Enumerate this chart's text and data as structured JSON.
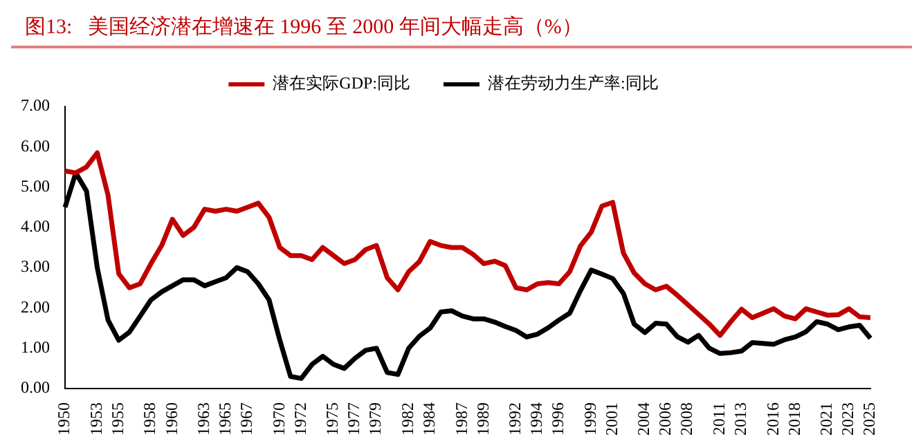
{
  "chart_data": {
    "type": "line",
    "title": "图13:   美国经济潜在增速在 1996 至 2000 年间大幅走高（%）",
    "categories": [
      "1950",
      null,
      null,
      "1953",
      null,
      "1955",
      null,
      null,
      "1958",
      null,
      "1960",
      null,
      null,
      "1963",
      null,
      "1965",
      null,
      "1967",
      null,
      null,
      "1970",
      null,
      "1972",
      null,
      null,
      "1975",
      null,
      "1977",
      null,
      "1979",
      null,
      null,
      "1982",
      null,
      "1984",
      null,
      null,
      "1987",
      null,
      "1989",
      null,
      null,
      "1992",
      null,
      "1994",
      null,
      "1996",
      null,
      null,
      "1999",
      null,
      "2001",
      null,
      null,
      "2004",
      null,
      "2006",
      null,
      "2008",
      null,
      null,
      "2011",
      null,
      "2013",
      null,
      null,
      "2016",
      null,
      "2018",
      null,
      null,
      "2021",
      null,
      "2023",
      null,
      "2025"
    ],
    "series": [
      {
        "name": "潜在实际GDP:同比",
        "color": "#c00000",
        "values": [
          5.4,
          5.35,
          5.5,
          5.85,
          4.8,
          2.85,
          2.5,
          2.6,
          3.1,
          3.55,
          4.2,
          3.8,
          4.0,
          4.45,
          4.4,
          4.45,
          4.4,
          4.5,
          4.6,
          4.25,
          3.5,
          3.3,
          3.3,
          3.2,
          3.5,
          3.3,
          3.1,
          3.2,
          3.45,
          3.55,
          2.75,
          2.45,
          2.9,
          3.15,
          3.65,
          3.55,
          3.5,
          3.5,
          3.33,
          3.1,
          3.16,
          3.05,
          2.5,
          2.45,
          2.6,
          2.63,
          2.6,
          2.9,
          3.54,
          3.88,
          4.53,
          4.62,
          3.36,
          2.87,
          2.6,
          2.45,
          2.54,
          2.32,
          2.08,
          1.84,
          1.6,
          1.32,
          1.66,
          1.97,
          1.76,
          1.87,
          1.98,
          1.8,
          1.73,
          1.98,
          1.9,
          1.82,
          1.83,
          1.98,
          1.78,
          1.76
        ]
      },
      {
        "name": "潜在劳动力生产率:同比",
        "color": "#000000",
        "values": [
          4.5,
          5.35,
          4.9,
          3.0,
          1.7,
          1.2,
          1.4,
          1.8,
          2.2,
          2.4,
          2.55,
          2.7,
          2.7,
          2.55,
          2.65,
          2.75,
          3.0,
          2.9,
          2.6,
          2.2,
          1.2,
          0.3,
          0.25,
          0.6,
          0.8,
          0.6,
          0.5,
          0.75,
          0.95,
          1.0,
          0.4,
          0.35,
          1.0,
          1.3,
          1.5,
          1.9,
          1.93,
          1.8,
          1.73,
          1.73,
          1.65,
          1.54,
          1.44,
          1.28,
          1.35,
          1.51,
          1.7,
          1.87,
          2.43,
          2.94,
          2.84,
          2.73,
          2.36,
          1.6,
          1.39,
          1.62,
          1.6,
          1.29,
          1.15,
          1.32,
          1.0,
          0.87,
          0.89,
          0.93,
          1.14,
          1.12,
          1.1,
          1.21,
          1.28,
          1.41,
          1.66,
          1.6,
          1.46,
          1.53,
          1.57,
          1.25
        ]
      }
    ],
    "ylim": [
      0,
      7
    ],
    "yticks": [
      {
        "value": 0,
        "label": "0.00"
      },
      {
        "value": 1,
        "label": "1.00"
      },
      {
        "value": 2,
        "label": "2.00"
      },
      {
        "value": 3,
        "label": "3.00"
      },
      {
        "value": 4,
        "label": "4.00"
      },
      {
        "value": 5,
        "label": "5.00"
      },
      {
        "value": 6,
        "label": "6.00"
      },
      {
        "value": 7,
        "label": "7.00"
      }
    ],
    "grid": false,
    "legend": "top",
    "marker": "none",
    "line_style": "solid"
  }
}
